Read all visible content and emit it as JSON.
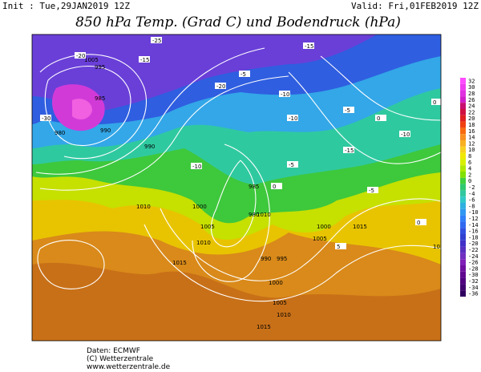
{
  "header": {
    "init": "Init : Tue,29JAN2019 12Z",
    "valid": "Valid: Fri,01FEB2019 12Z",
    "title": "850 hPa Temp. (Grad C) und Bodendruck (hPa)"
  },
  "colorbar": {
    "ticks": [
      32,
      30,
      28,
      26,
      24,
      22,
      20,
      18,
      16,
      14,
      12,
      10,
      8,
      6,
      4,
      2,
      0,
      -2,
      -4,
      -6,
      -8,
      -10,
      -12,
      -14,
      -16,
      -18,
      -20,
      -22,
      -24,
      -26,
      -28,
      -30,
      -32,
      -34,
      -36
    ]
  },
  "map": {
    "isobar_labels": [
      "1005",
      "995",
      "990",
      "985",
      "980",
      "990",
      "1000",
      "1005",
      "1010",
      "1010",
      "1015",
      "985",
      "980",
      "990",
      "995",
      "1000",
      "1005",
      "1010",
      "1015",
      "1005",
      "1000",
      "1010",
      "1015",
      "1010"
    ],
    "temp_labels": [
      "-25",
      "-20",
      "-15",
      "-30",
      "-20",
      "-15",
      "-10",
      "-5",
      "-10",
      "-5",
      "0",
      "-5",
      "-10",
      "-15",
      "0",
      "5",
      "0",
      "-10",
      "-5",
      "0"
    ]
  },
  "footer": {
    "source": "Daten: ECMWF",
    "copyright": "(C) Wetterzentrale",
    "url": "www.wetterzentrale.de"
  }
}
